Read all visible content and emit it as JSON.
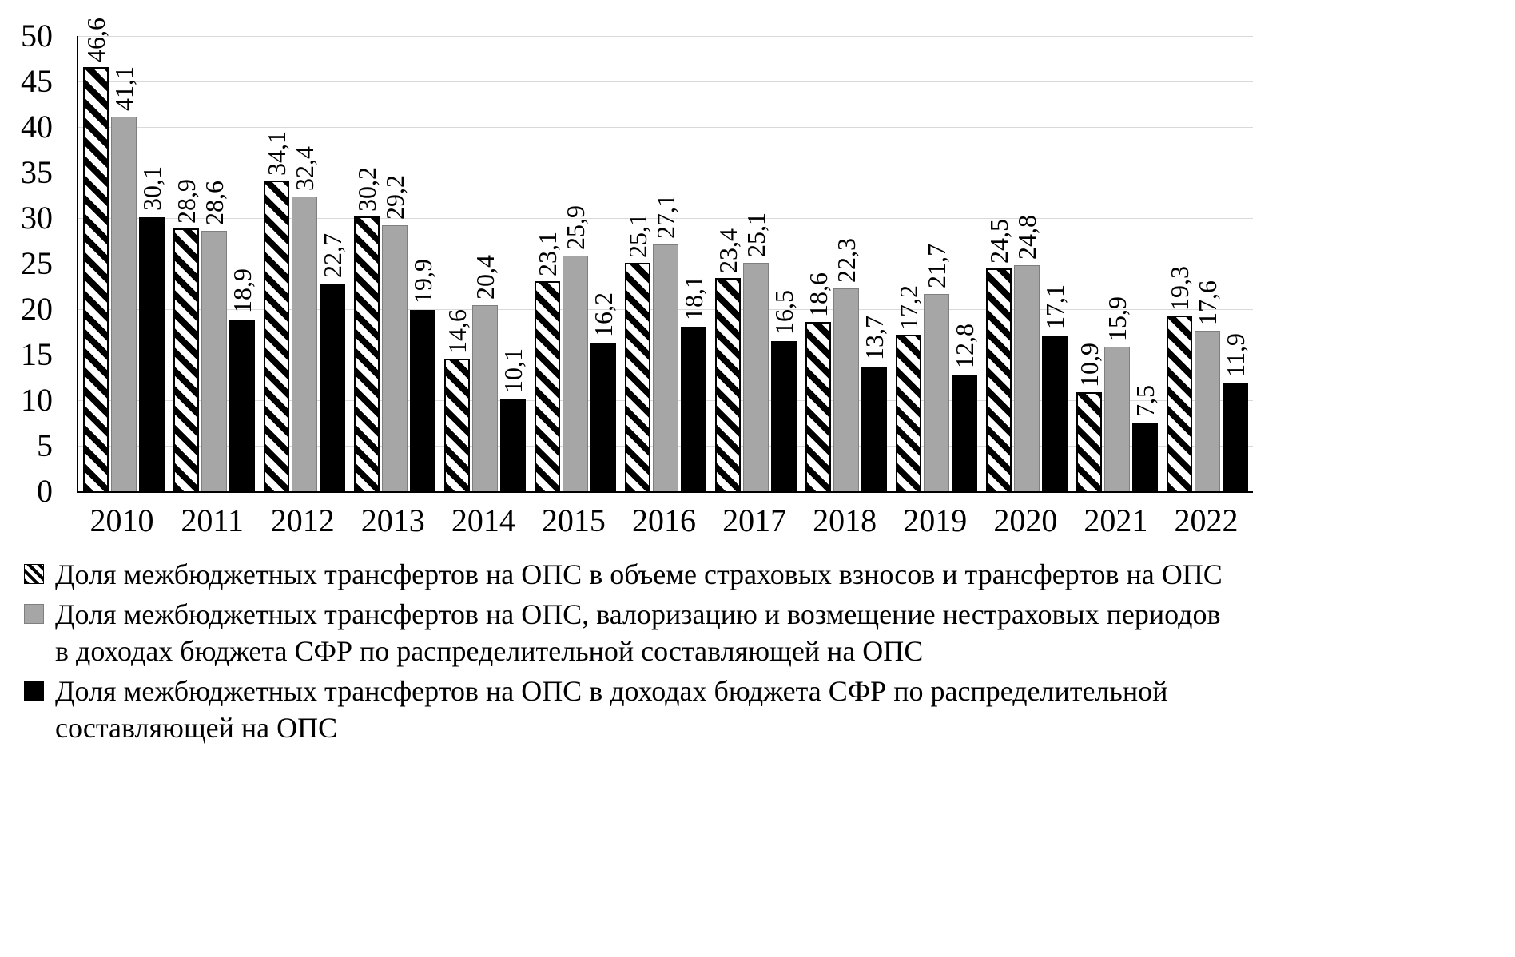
{
  "chart_data": {
    "type": "bar",
    "title": "",
    "xlabel": "",
    "ylabel": "",
    "ylim": [
      0,
      50
    ],
    "ytick_step": 5,
    "yticks": [
      "0",
      "5",
      "10",
      "15",
      "20",
      "25",
      "30",
      "35",
      "40",
      "45",
      "50"
    ],
    "grid": true,
    "legend_position": "bottom",
    "decimal_separator": ",",
    "categories": [
      "2010",
      "2011",
      "2012",
      "2013",
      "2014",
      "2015",
      "2016",
      "2017",
      "2018",
      "2019",
      "2020",
      "2021",
      "2022"
    ],
    "series": [
      {
        "name": "Доля межбюджетных трансфертов на ОПС в объеме страховых взносов и трансфертов на ОПС",
        "style": "hatched",
        "values": [
          46.6,
          28.9,
          34.1,
          30.2,
          14.6,
          23.1,
          25.1,
          23.4,
          18.6,
          17.2,
          24.5,
          10.9,
          19.3
        ],
        "labels": [
          "46,6",
          "28,9",
          "34,1",
          "30,2",
          "14,6",
          "23,1",
          "25,1",
          "23,4",
          "18,6",
          "17,2",
          "24,5",
          "10,9",
          "19,3"
        ]
      },
      {
        "name": "Доля межбюджетных трансфертов на ОПС, валоризацию и возмещение нестраховых периодов в доходах бюджета СФР по распределительной составляющей на ОПС",
        "style": "gray",
        "values": [
          41.1,
          28.6,
          32.4,
          29.2,
          20.4,
          25.9,
          27.1,
          25.1,
          22.3,
          21.7,
          24.8,
          15.9,
          17.6
        ],
        "labels": [
          "41,1",
          "28,6",
          "32,4",
          "29,2",
          "20,4",
          "25,9",
          "27,1",
          "25,1",
          "22,3",
          "21,7",
          "24,8",
          "15,9",
          "17,6"
        ]
      },
      {
        "name": "Доля межбюджетных трансфертов на ОПС в доходах бюджета СФР по распределительной составляющей на ОПС",
        "style": "black",
        "values": [
          30.1,
          18.9,
          22.7,
          19.9,
          10.1,
          16.2,
          18.1,
          16.5,
          13.7,
          12.8,
          17.1,
          7.5,
          11.9
        ],
        "labels": [
          "30,1",
          "18,9",
          "22,7",
          "19,9",
          "10,1",
          "16,2",
          "18,1",
          "16,5",
          "13,7",
          "12,8",
          "17,1",
          "7,5",
          "11,9"
        ]
      }
    ]
  },
  "colors": {
    "hatched_series_fg": "#000000",
    "hatched_series_bg": "#ffffff",
    "gray_series": "#a6a6a6",
    "black_series": "#000000",
    "gridline": "#d9d9d9",
    "axis": "#000000",
    "background": "#ffffff"
  }
}
